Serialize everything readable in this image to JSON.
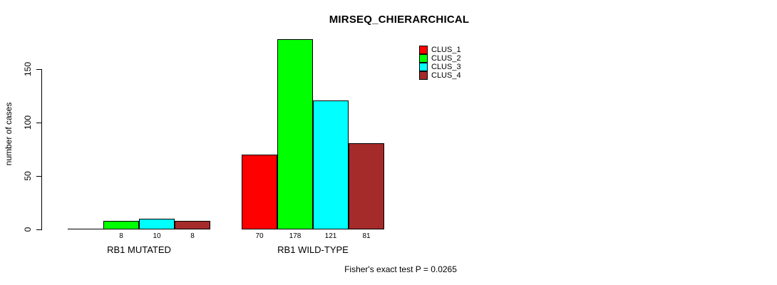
{
  "chart_data": {
    "type": "bar",
    "title": "MIRSEQ_CHIERARCHICAL",
    "ylabel": "number of cases",
    "xlabel": "",
    "ylim": [
      0,
      178
    ],
    "yticks": [
      0,
      50,
      100,
      150
    ],
    "grid": false,
    "legend_position": "top-right",
    "categories": [
      "RB1 MUTATED",
      "RB1 WILD-TYPE"
    ],
    "series": [
      {
        "name": "CLUS_1",
        "color": "#ff0000",
        "values": [
          0,
          70
        ]
      },
      {
        "name": "CLUS_2",
        "color": "#00ff00",
        "values": [
          8,
          178
        ]
      },
      {
        "name": "CLUS_3",
        "color": "#00ffff",
        "values": [
          10,
          121
        ]
      },
      {
        "name": "CLUS_4",
        "color": "#a52a2a",
        "values": [
          8,
          81
        ]
      }
    ],
    "bar_value_labels": [
      [
        "",
        "8",
        "10",
        "8"
      ],
      [
        "70",
        "178",
        "121",
        "81"
      ]
    ],
    "bar_border_color": "#000000",
    "axis_color": "#000000",
    "annotation": "Fisher's exact test P = 0.0265"
  }
}
